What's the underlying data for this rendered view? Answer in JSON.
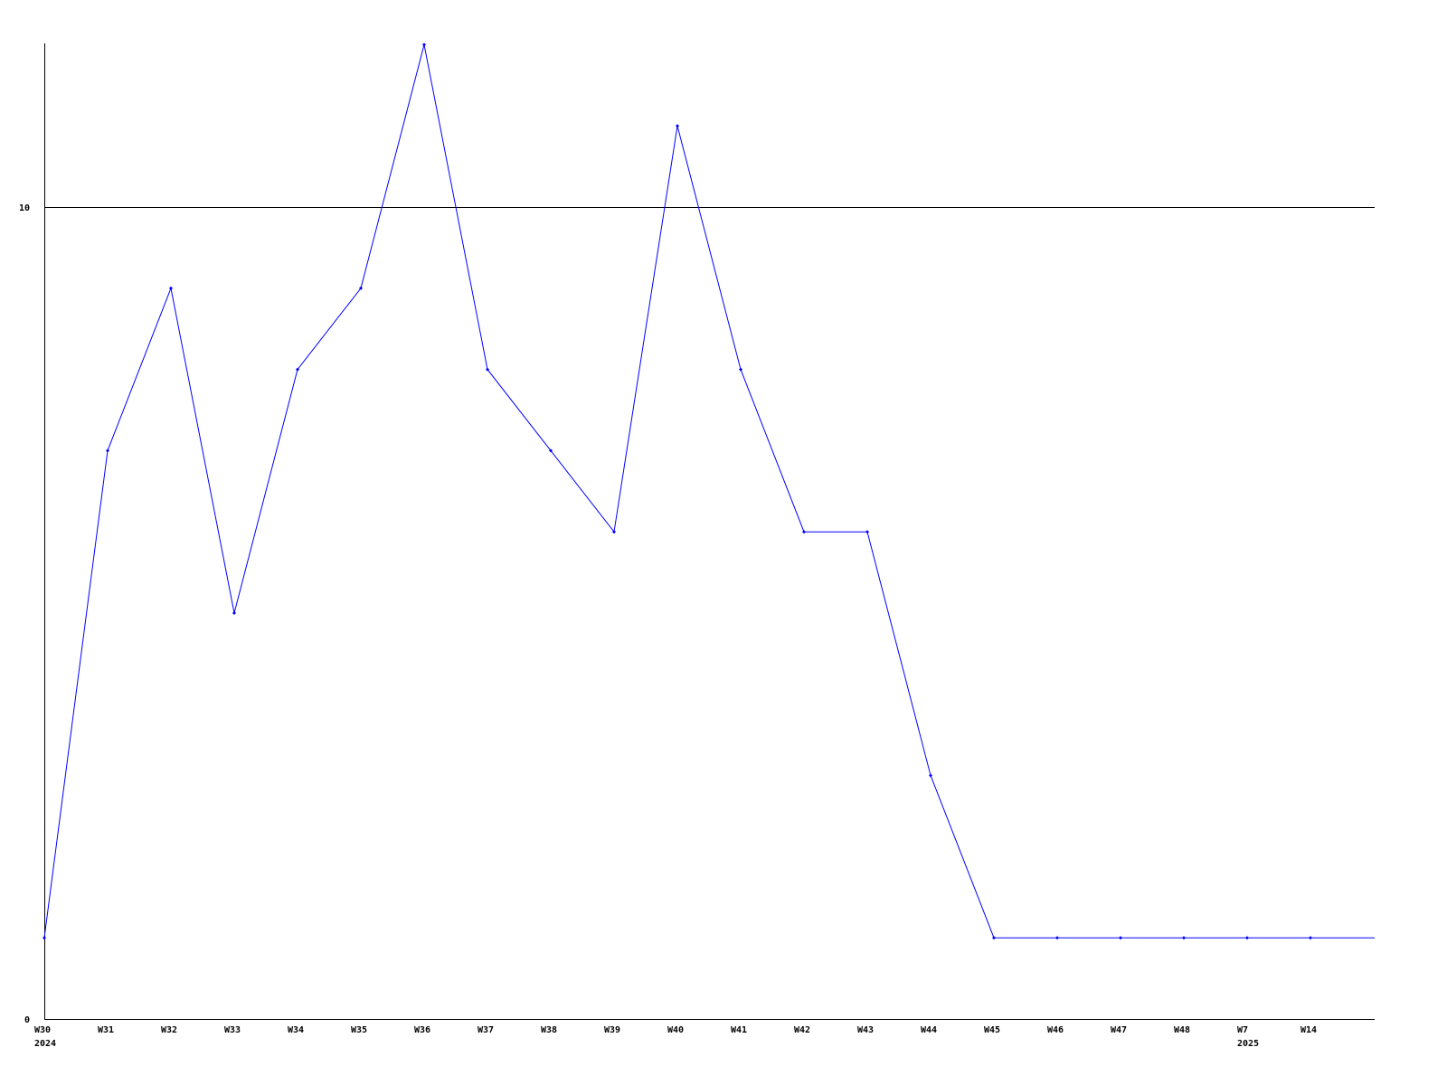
{
  "chart_data": {
    "type": "line",
    "title": "",
    "xlabel": "",
    "ylabel": "",
    "categories": [
      "W30",
      "W31",
      "W32",
      "W33",
      "W34",
      "W35",
      "W36",
      "W37",
      "W38",
      "W39",
      "W40",
      "W41",
      "W42",
      "W43",
      "W44",
      "W45",
      "W46",
      "W47",
      "W48",
      "W7",
      "W14"
    ],
    "year_labels": [
      {
        "category": "W30",
        "label": "2024"
      },
      {
        "category": "W7",
        "label": "2025"
      }
    ],
    "series": [
      {
        "values": [
          1,
          7,
          9,
          5,
          8,
          9,
          12,
          8,
          7,
          6,
          11,
          8,
          6,
          6,
          3,
          1,
          1,
          1,
          1,
          1,
          1
        ],
        "color": "#0000ff",
        "trailing_value": 1
      }
    ],
    "ylim": [
      0,
      12
    ],
    "yticks": [
      0,
      10
    ],
    "reference_line": 10,
    "grid": false,
    "legend": "none",
    "colors": {
      "line": "#0000ff",
      "axis": "#000000"
    }
  }
}
